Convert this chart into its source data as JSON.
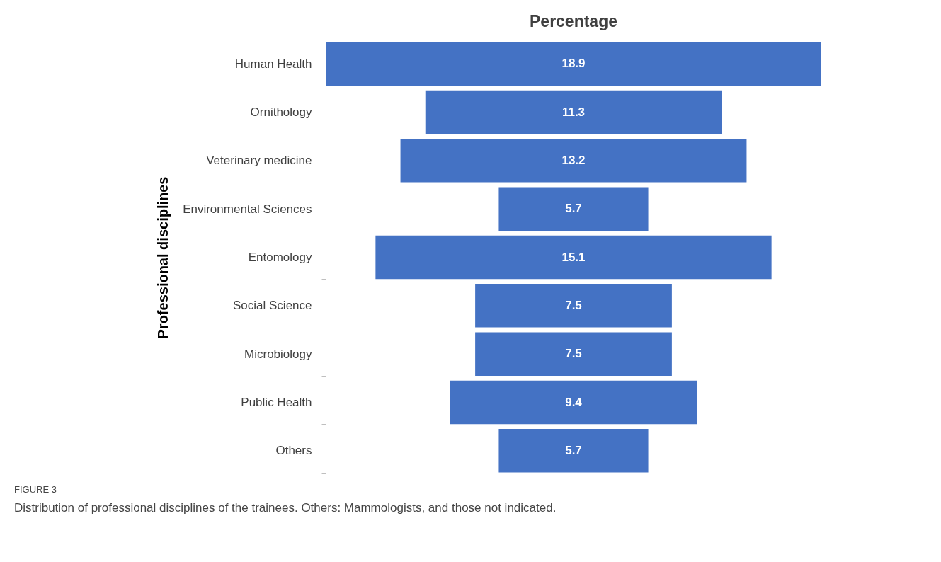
{
  "chart_data": {
    "type": "other",
    "title": "Percentage",
    "ylabel": "Professional disciplines",
    "categories": [
      "Human Health",
      "Ornithology",
      "Veterinary medicine",
      "Environmental Sciences",
      "Entomology",
      "Social Science",
      "Microbiology",
      "Public Health",
      "Others"
    ],
    "values": [
      18.9,
      11.3,
      13.2,
      5.7,
      15.1,
      7.5,
      7.5,
      9.4,
      5.7
    ],
    "color": "#4472c4",
    "data_labels": true,
    "annotations": [
      "FIGURE 3",
      "Distribution of professional disciplines of the trainees. Others: Mammologists, and those not indicated."
    ]
  }
}
